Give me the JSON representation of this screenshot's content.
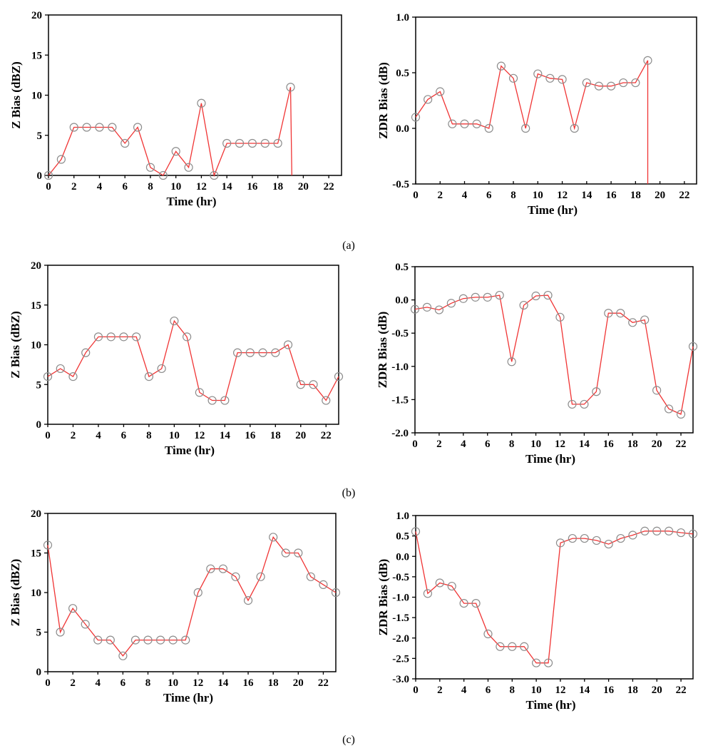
{
  "colors": {
    "line": "#f03434",
    "marker": "#8c8c8c",
    "axis": "#000000"
  },
  "captions": [
    "(a)",
    "(b)",
    "(c)"
  ],
  "chart_data": [
    {
      "id": "a-z",
      "type": "line",
      "panel": "(a)",
      "title": "",
      "xlabel": "Time (hr)",
      "ylabel": "Z Bias (dBZ)",
      "xlim": [
        0,
        23
      ],
      "ylim": [
        0,
        20
      ],
      "xticks": [
        "0",
        "2",
        "4",
        "6",
        "8",
        "10",
        "12",
        "14",
        "16",
        "18",
        "20",
        "22"
      ],
      "yticks": [
        "0",
        "5",
        "10",
        "15",
        "20"
      ],
      "grid": false,
      "x": [
        0,
        1,
        2,
        3,
        4,
        5,
        6,
        7,
        8,
        9,
        10,
        11,
        12,
        13,
        14,
        15,
        16,
        17,
        18,
        19
      ],
      "y": [
        0,
        2,
        6,
        6,
        6,
        6,
        4,
        6,
        1,
        0,
        3,
        1,
        9,
        0,
        4,
        4,
        4,
        4,
        4,
        11
      ],
      "line_tail": {
        "x": 19.1,
        "y": 0
      }
    },
    {
      "id": "a-zdr",
      "type": "line",
      "panel": "(a)",
      "title": "",
      "xlabel": "Time (hr)",
      "ylabel": "ZDR Bias (dB)",
      "xlim": [
        0,
        23
      ],
      "ylim": [
        -0.5,
        1.0
      ],
      "xticks": [
        "0",
        "2",
        "4",
        "6",
        "8",
        "10",
        "12",
        "14",
        "16",
        "18",
        "20",
        "22"
      ],
      "yticks": [
        "-0.5",
        "0.0",
        "0.5",
        "1.0"
      ],
      "grid": false,
      "x": [
        0,
        1,
        2,
        3,
        4,
        5,
        6,
        7,
        8,
        9,
        10,
        11,
        12,
        13,
        14,
        15,
        16,
        17,
        18,
        19
      ],
      "y": [
        0.1,
        0.26,
        0.33,
        0.04,
        0.04,
        0.04,
        0.0,
        0.56,
        0.45,
        0.0,
        0.49,
        0.45,
        0.44,
        0.0,
        0.41,
        0.38,
        0.38,
        0.41,
        0.41,
        0.61
      ],
      "line_tail": {
        "x": 19.0,
        "y": -0.5
      }
    },
    {
      "id": "b-z",
      "type": "line",
      "panel": "(b)",
      "title": "",
      "xlabel": "Time (hr)",
      "ylabel": "Z Bias (dBZ)",
      "xlim": [
        0,
        23
      ],
      "ylim": [
        0,
        20
      ],
      "xticks": [
        "0",
        "2",
        "4",
        "6",
        "8",
        "10",
        "12",
        "14",
        "16",
        "18",
        "20",
        "22"
      ],
      "yticks": [
        "0",
        "5",
        "10",
        "15",
        "20"
      ],
      "grid": false,
      "x": [
        0,
        1,
        2,
        3,
        4,
        5,
        6,
        7,
        8,
        9,
        10,
        11,
        12,
        13,
        14,
        15,
        16,
        17,
        18,
        19,
        20,
        21,
        22,
        23
      ],
      "y": [
        6,
        7,
        6,
        9,
        11,
        11,
        11,
        11,
        6,
        7,
        13,
        11,
        4,
        3,
        3,
        9,
        9,
        9,
        9,
        10,
        5,
        5,
        3,
        6
      ]
    },
    {
      "id": "b-zdr",
      "type": "line",
      "panel": "(b)",
      "title": "",
      "xlabel": "Time (hr)",
      "ylabel": "ZDR Bias (dB)",
      "xlim": [
        0,
        23
      ],
      "ylim": [
        -2.0,
        0.5
      ],
      "xticks": [
        "0",
        "2",
        "4",
        "6",
        "8",
        "10",
        "12",
        "14",
        "16",
        "18",
        "20",
        "22"
      ],
      "yticks": [
        "-2.0",
        "-1.5",
        "-1.0",
        "-0.5",
        "0.0",
        "0.5"
      ],
      "grid": false,
      "x": [
        0,
        1,
        2,
        3,
        4,
        5,
        6,
        7,
        8,
        9,
        10,
        11,
        12,
        13,
        14,
        15,
        16,
        17,
        18,
        19,
        20,
        21,
        22,
        23
      ],
      "y": [
        -0.14,
        -0.11,
        -0.15,
        -0.05,
        0.02,
        0.04,
        0.04,
        0.07,
        -0.93,
        -0.08,
        0.06,
        0.07,
        -0.26,
        -1.57,
        -1.57,
        -1.38,
        -0.2,
        -0.2,
        -0.34,
        -0.3,
        -1.36,
        -1.64,
        -1.72,
        -0.7
      ]
    },
    {
      "id": "c-z",
      "type": "line",
      "panel": "(c)",
      "title": "",
      "xlabel": "Time (hr)",
      "ylabel": "Z Bias (dBZ)",
      "xlim": [
        0,
        23
      ],
      "ylim": [
        0,
        20
      ],
      "xticks": [
        "0",
        "2",
        "4",
        "6",
        "8",
        "10",
        "12",
        "14",
        "16",
        "18",
        "20",
        "22"
      ],
      "yticks": [
        "0",
        "5",
        "10",
        "15",
        "20"
      ],
      "grid": false,
      "x": [
        0,
        1,
        2,
        3,
        4,
        5,
        6,
        7,
        8,
        9,
        10,
        11,
        12,
        13,
        14,
        15,
        16,
        17,
        18,
        19,
        20,
        21,
        22,
        23
      ],
      "y": [
        16,
        5,
        8,
        6,
        4,
        4,
        2,
        4,
        4,
        4,
        4,
        4,
        10,
        13,
        13,
        12,
        9,
        12,
        17,
        15,
        15,
        12,
        11,
        10
      ]
    },
    {
      "id": "c-zdr",
      "type": "line",
      "panel": "(c)",
      "title": "",
      "xlabel": "Time (hr)",
      "ylabel": "ZDR Bias (dB)",
      "xlim": [
        0,
        23
      ],
      "ylim": [
        -3.0,
        1.0
      ],
      "xticks": [
        "0",
        "2",
        "4",
        "6",
        "8",
        "10",
        "12",
        "14",
        "16",
        "18",
        "20",
        "22"
      ],
      "yticks": [
        "-3.0",
        "-2.5",
        "-2.0",
        "-1.5",
        "-1.0",
        "-0.5",
        "0.0",
        "0.5",
        "1.0"
      ],
      "grid": false,
      "x": [
        0,
        1,
        2,
        3,
        4,
        5,
        6,
        7,
        8,
        9,
        10,
        11,
        12,
        13,
        14,
        15,
        16,
        17,
        18,
        19,
        20,
        21,
        22,
        23
      ],
      "y": [
        0.61,
        -0.91,
        -0.65,
        -0.73,
        -1.15,
        -1.15,
        -1.9,
        -2.21,
        -2.21,
        -2.21,
        -2.61,
        -2.61,
        0.33,
        0.44,
        0.44,
        0.39,
        0.3,
        0.44,
        0.52,
        0.62,
        0.62,
        0.62,
        0.58,
        0.55
      ]
    }
  ]
}
